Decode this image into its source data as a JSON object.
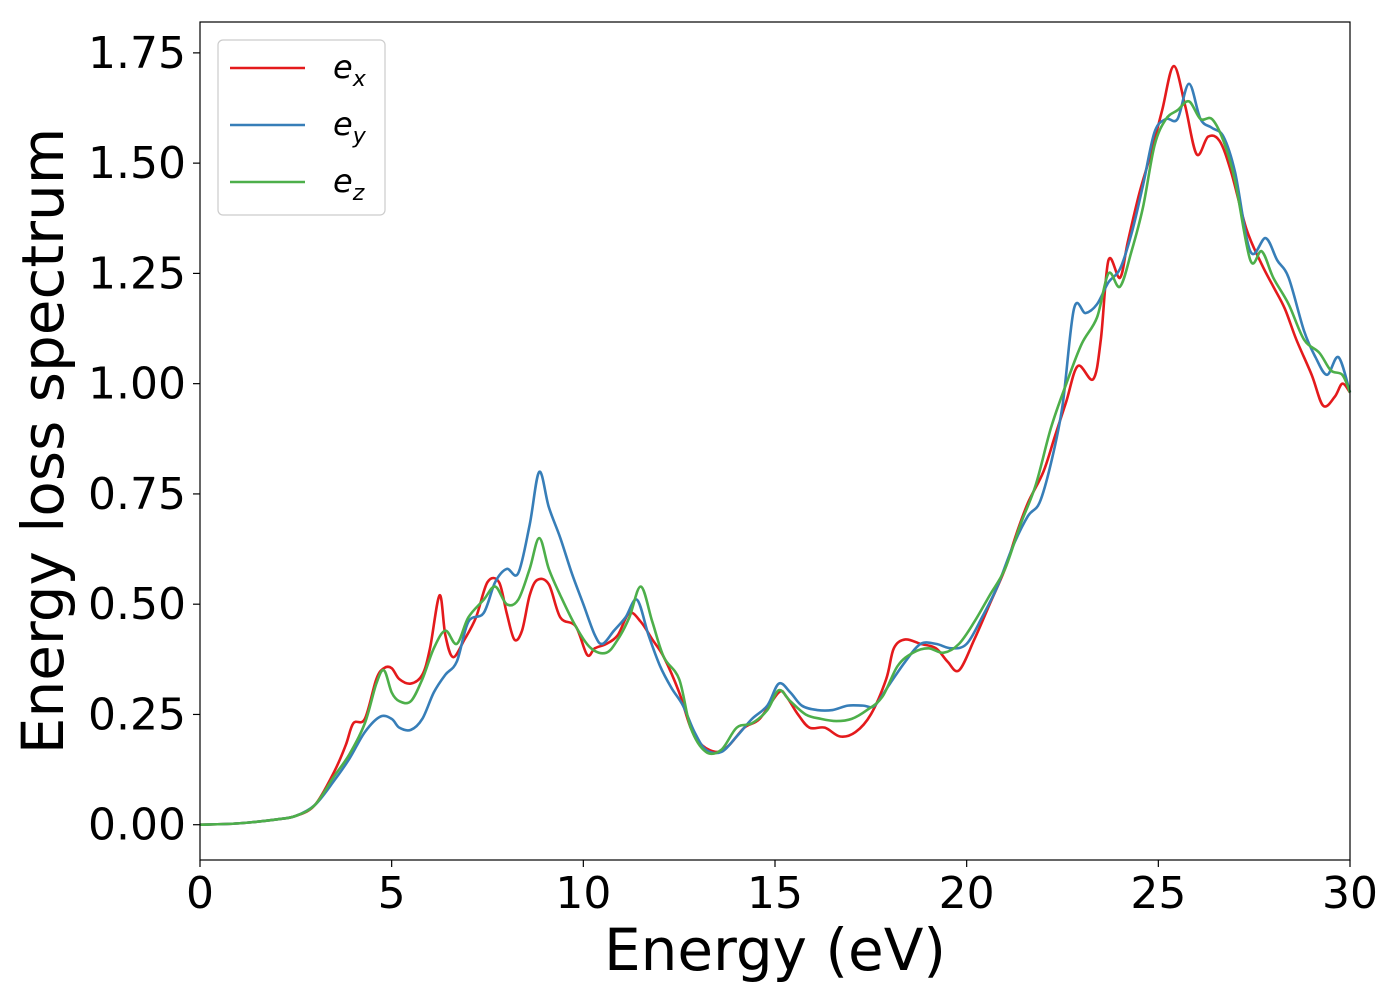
{
  "chart_data": {
    "type": "line",
    "title": "",
    "xlabel": "Energy (eV)",
    "ylabel": "Energy loss spectrum",
    "xlim": [
      0,
      30
    ],
    "ylim": [
      -0.08,
      1.82
    ],
    "x_ticks": [
      "0",
      "5",
      "10",
      "15",
      "20",
      "25",
      "30"
    ],
    "x_tick_values": [
      0,
      5,
      10,
      15,
      20,
      25,
      30
    ],
    "y_ticks": [
      "0.00",
      "0.25",
      "0.50",
      "0.75",
      "1.00",
      "1.25",
      "1.50",
      "1.75"
    ],
    "y_tick_values": [
      0,
      0.25,
      0.5,
      0.75,
      1.0,
      1.25,
      1.5,
      1.75
    ],
    "grid": false,
    "legend_position": "top-left",
    "series": [
      {
        "name": "e_x",
        "label_base": "e",
        "label_sub": "x",
        "color": "#e41a1c",
        "points": [
          [
            0,
            0
          ],
          [
            1,
            0.003
          ],
          [
            2,
            0.012
          ],
          [
            2.5,
            0.02
          ],
          [
            3,
            0.045
          ],
          [
            3.5,
            0.12
          ],
          [
            3.8,
            0.18
          ],
          [
            4.0,
            0.23
          ],
          [
            4.3,
            0.24
          ],
          [
            4.6,
            0.33
          ],
          [
            4.8,
            0.355
          ],
          [
            5.0,
            0.355
          ],
          [
            5.2,
            0.33
          ],
          [
            5.5,
            0.32
          ],
          [
            5.8,
            0.34
          ],
          [
            6.0,
            0.4
          ],
          [
            6.25,
            0.52
          ],
          [
            6.4,
            0.43
          ],
          [
            6.6,
            0.38
          ],
          [
            6.9,
            0.42
          ],
          [
            7.2,
            0.47
          ],
          [
            7.5,
            0.55
          ],
          [
            7.8,
            0.55
          ],
          [
            8.0,
            0.48
          ],
          [
            8.2,
            0.42
          ],
          [
            8.4,
            0.44
          ],
          [
            8.6,
            0.52
          ],
          [
            8.8,
            0.555
          ],
          [
            9.1,
            0.545
          ],
          [
            9.4,
            0.47
          ],
          [
            9.8,
            0.45
          ],
          [
            10.1,
            0.385
          ],
          [
            10.3,
            0.4
          ],
          [
            10.6,
            0.41
          ],
          [
            10.9,
            0.43
          ],
          [
            11.2,
            0.48
          ],
          [
            11.5,
            0.46
          ],
          [
            11.8,
            0.42
          ],
          [
            12.1,
            0.38
          ],
          [
            12.5,
            0.3
          ],
          [
            12.8,
            0.22
          ],
          [
            13.1,
            0.18
          ],
          [
            13.5,
            0.165
          ],
          [
            13.8,
            0.18
          ],
          [
            14.2,
            0.22
          ],
          [
            14.6,
            0.24
          ],
          [
            15.1,
            0.3
          ],
          [
            15.3,
            0.29
          ],
          [
            15.6,
            0.25
          ],
          [
            15.9,
            0.22
          ],
          [
            16.3,
            0.22
          ],
          [
            16.7,
            0.2
          ],
          [
            17.1,
            0.21
          ],
          [
            17.5,
            0.25
          ],
          [
            17.9,
            0.33
          ],
          [
            18.1,
            0.4
          ],
          [
            18.4,
            0.42
          ],
          [
            18.8,
            0.41
          ],
          [
            19.2,
            0.4
          ],
          [
            19.5,
            0.37
          ],
          [
            19.8,
            0.35
          ],
          [
            20.2,
            0.42
          ],
          [
            20.6,
            0.5
          ],
          [
            21.0,
            0.58
          ],
          [
            21.3,
            0.66
          ],
          [
            21.6,
            0.73
          ],
          [
            22.0,
            0.8
          ],
          [
            22.3,
            0.88
          ],
          [
            22.6,
            0.96
          ],
          [
            22.9,
            1.04
          ],
          [
            23.3,
            1.01
          ],
          [
            23.5,
            1.1
          ],
          [
            23.7,
            1.28
          ],
          [
            24.0,
            1.24
          ],
          [
            24.2,
            1.32
          ],
          [
            24.5,
            1.43
          ],
          [
            24.8,
            1.52
          ],
          [
            25.1,
            1.62
          ],
          [
            25.4,
            1.72
          ],
          [
            25.7,
            1.63
          ],
          [
            26.0,
            1.52
          ],
          [
            26.3,
            1.56
          ],
          [
            26.6,
            1.55
          ],
          [
            26.9,
            1.48
          ],
          [
            27.3,
            1.35
          ],
          [
            27.7,
            1.27
          ],
          [
            28.0,
            1.22
          ],
          [
            28.3,
            1.17
          ],
          [
            28.6,
            1.1
          ],
          [
            29.0,
            1.02
          ],
          [
            29.3,
            0.95
          ],
          [
            29.6,
            0.97
          ],
          [
            29.8,
            1.0
          ],
          [
            30.0,
            0.98
          ]
        ]
      },
      {
        "name": "e_y",
        "label_base": "e",
        "label_sub": "y",
        "color": "#377eb8",
        "points": [
          [
            0,
            0
          ],
          [
            1,
            0.003
          ],
          [
            2,
            0.012
          ],
          [
            2.5,
            0.02
          ],
          [
            3,
            0.045
          ],
          [
            3.5,
            0.1
          ],
          [
            3.9,
            0.15
          ],
          [
            4.3,
            0.21
          ],
          [
            4.7,
            0.245
          ],
          [
            5.0,
            0.24
          ],
          [
            5.2,
            0.22
          ],
          [
            5.5,
            0.215
          ],
          [
            5.8,
            0.24
          ],
          [
            6.1,
            0.3
          ],
          [
            6.4,
            0.34
          ],
          [
            6.7,
            0.37
          ],
          [
            7.0,
            0.46
          ],
          [
            7.4,
            0.48
          ],
          [
            7.7,
            0.55
          ],
          [
            8.0,
            0.58
          ],
          [
            8.3,
            0.57
          ],
          [
            8.6,
            0.68
          ],
          [
            8.85,
            0.8
          ],
          [
            9.1,
            0.72
          ],
          [
            9.4,
            0.65
          ],
          [
            9.7,
            0.57
          ],
          [
            10.0,
            0.5
          ],
          [
            10.3,
            0.43
          ],
          [
            10.5,
            0.41
          ],
          [
            10.8,
            0.44
          ],
          [
            11.1,
            0.47
          ],
          [
            11.4,
            0.51
          ],
          [
            11.7,
            0.43
          ],
          [
            12.0,
            0.36
          ],
          [
            12.3,
            0.31
          ],
          [
            12.6,
            0.27
          ],
          [
            12.9,
            0.21
          ],
          [
            13.2,
            0.17
          ],
          [
            13.6,
            0.165
          ],
          [
            14.0,
            0.2
          ],
          [
            14.4,
            0.24
          ],
          [
            14.8,
            0.27
          ],
          [
            15.1,
            0.32
          ],
          [
            15.4,
            0.3
          ],
          [
            15.7,
            0.27
          ],
          [
            16.1,
            0.26
          ],
          [
            16.5,
            0.26
          ],
          [
            16.9,
            0.27
          ],
          [
            17.3,
            0.27
          ],
          [
            17.6,
            0.27
          ],
          [
            18.0,
            0.32
          ],
          [
            18.4,
            0.37
          ],
          [
            18.8,
            0.41
          ],
          [
            19.2,
            0.41
          ],
          [
            19.6,
            0.4
          ],
          [
            20.0,
            0.41
          ],
          [
            20.4,
            0.47
          ],
          [
            20.8,
            0.54
          ],
          [
            21.2,
            0.63
          ],
          [
            21.6,
            0.7
          ],
          [
            21.9,
            0.73
          ],
          [
            22.2,
            0.82
          ],
          [
            22.5,
            0.95
          ],
          [
            22.8,
            1.17
          ],
          [
            23.1,
            1.16
          ],
          [
            23.4,
            1.18
          ],
          [
            23.7,
            1.23
          ],
          [
            24.0,
            1.26
          ],
          [
            24.3,
            1.34
          ],
          [
            24.6,
            1.45
          ],
          [
            24.9,
            1.57
          ],
          [
            25.2,
            1.6
          ],
          [
            25.5,
            1.6
          ],
          [
            25.8,
            1.68
          ],
          [
            26.1,
            1.6
          ],
          [
            26.4,
            1.58
          ],
          [
            26.7,
            1.56
          ],
          [
            27.0,
            1.48
          ],
          [
            27.4,
            1.3
          ],
          [
            27.8,
            1.33
          ],
          [
            28.1,
            1.28
          ],
          [
            28.4,
            1.24
          ],
          [
            28.8,
            1.12
          ],
          [
            29.1,
            1.06
          ],
          [
            29.4,
            1.02
          ],
          [
            29.7,
            1.06
          ],
          [
            30.0,
            0.98
          ]
        ]
      },
      {
        "name": "e_z",
        "label_base": "e",
        "label_sub": "z",
        "color": "#4daf4a",
        "points": [
          [
            0,
            0
          ],
          [
            1,
            0.003
          ],
          [
            2,
            0.012
          ],
          [
            2.5,
            0.02
          ],
          [
            3,
            0.045
          ],
          [
            3.5,
            0.11
          ],
          [
            3.9,
            0.16
          ],
          [
            4.3,
            0.23
          ],
          [
            4.6,
            0.32
          ],
          [
            4.8,
            0.35
          ],
          [
            5.0,
            0.3
          ],
          [
            5.2,
            0.28
          ],
          [
            5.5,
            0.28
          ],
          [
            5.8,
            0.33
          ],
          [
            6.1,
            0.4
          ],
          [
            6.4,
            0.44
          ],
          [
            6.7,
            0.41
          ],
          [
            7.0,
            0.47
          ],
          [
            7.4,
            0.51
          ],
          [
            7.7,
            0.54
          ],
          [
            8.0,
            0.5
          ],
          [
            8.3,
            0.51
          ],
          [
            8.6,
            0.58
          ],
          [
            8.85,
            0.65
          ],
          [
            9.1,
            0.58
          ],
          [
            9.4,
            0.52
          ],
          [
            9.8,
            0.45
          ],
          [
            10.2,
            0.4
          ],
          [
            10.6,
            0.39
          ],
          [
            10.9,
            0.42
          ],
          [
            11.2,
            0.47
          ],
          [
            11.5,
            0.54
          ],
          [
            11.8,
            0.46
          ],
          [
            12.1,
            0.38
          ],
          [
            12.5,
            0.33
          ],
          [
            12.8,
            0.22
          ],
          [
            13.2,
            0.165
          ],
          [
            13.6,
            0.17
          ],
          [
            14.0,
            0.22
          ],
          [
            14.4,
            0.23
          ],
          [
            14.8,
            0.26
          ],
          [
            15.1,
            0.305
          ],
          [
            15.4,
            0.28
          ],
          [
            15.8,
            0.25
          ],
          [
            16.2,
            0.24
          ],
          [
            16.6,
            0.235
          ],
          [
            17.0,
            0.24
          ],
          [
            17.4,
            0.26
          ],
          [
            17.8,
            0.29
          ],
          [
            18.2,
            0.36
          ],
          [
            18.6,
            0.39
          ],
          [
            19.0,
            0.4
          ],
          [
            19.4,
            0.39
          ],
          [
            19.8,
            0.41
          ],
          [
            20.2,
            0.46
          ],
          [
            20.6,
            0.52
          ],
          [
            21.0,
            0.58
          ],
          [
            21.4,
            0.68
          ],
          [
            21.8,
            0.77
          ],
          [
            22.2,
            0.9
          ],
          [
            22.6,
            1.0
          ],
          [
            23.0,
            1.09
          ],
          [
            23.4,
            1.15
          ],
          [
            23.7,
            1.25
          ],
          [
            24.0,
            1.22
          ],
          [
            24.3,
            1.3
          ],
          [
            24.6,
            1.4
          ],
          [
            24.9,
            1.54
          ],
          [
            25.2,
            1.6
          ],
          [
            25.5,
            1.62
          ],
          [
            25.8,
            1.64
          ],
          [
            26.1,
            1.6
          ],
          [
            26.4,
            1.6
          ],
          [
            26.7,
            1.55
          ],
          [
            27.0,
            1.46
          ],
          [
            27.4,
            1.28
          ],
          [
            27.7,
            1.3
          ],
          [
            28.0,
            1.24
          ],
          [
            28.4,
            1.18
          ],
          [
            28.8,
            1.1
          ],
          [
            29.2,
            1.07
          ],
          [
            29.5,
            1.03
          ],
          [
            29.8,
            1.02
          ],
          [
            30.0,
            0.98
          ]
        ]
      }
    ]
  }
}
